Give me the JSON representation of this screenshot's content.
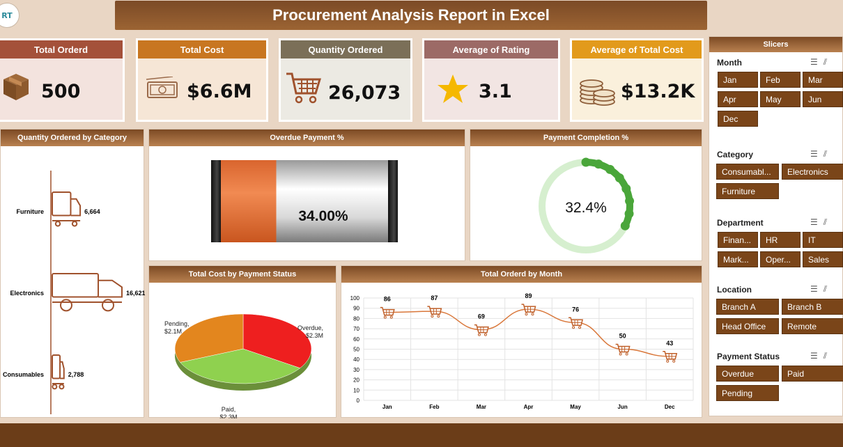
{
  "logo": {
    "text": "RT"
  },
  "title": "Procurement Analysis Report in Excel",
  "kpis": [
    {
      "label": "Total Orderd",
      "value": "500",
      "icon": "box-icon",
      "color": "#a4513a"
    },
    {
      "label": "Total Cost",
      "value": "$6.6M",
      "icon": "money-icon",
      "color": "#c87621"
    },
    {
      "label": "Quantity Ordered",
      "value": "26,073",
      "icon": "cart-icon",
      "color": "#7b6f58"
    },
    {
      "label": "Average of Rating",
      "value": "3.1",
      "icon": "star-icon",
      "color": "#9c6a66"
    },
    {
      "label": "Average of Total Cost",
      "value": "$13.2K",
      "icon": "coins-icon",
      "color": "#e29a1c"
    }
  ],
  "panels": {
    "category": {
      "title": "Quantity Ordered by Category"
    },
    "overdue": {
      "title": "Overdue Payment %",
      "value_label": "34.00%",
      "value": 34.0
    },
    "completion": {
      "title": "Payment Completion %",
      "value_label": "32.4%",
      "value": 32.4
    },
    "status": {
      "title": "Total Cost by Payment Status"
    },
    "month": {
      "title": "Total Orderd by Month"
    }
  },
  "chart_data": [
    {
      "type": "bar",
      "title": "Quantity Ordered by Category",
      "categories": [
        "Furniture",
        "Electronics",
        "Consumables"
      ],
      "values": [
        6664,
        16621,
        2788
      ],
      "value_labels": [
        "6,664",
        "16,621",
        "2,788"
      ]
    },
    {
      "type": "pie",
      "title": "Total Cost by Payment Status",
      "slices": [
        {
          "label": "Overdue,",
          "value_label": "$2.3M",
          "value": 2.3,
          "color": "#ee1f1f"
        },
        {
          "label": "Paid,",
          "value_label": "$2.3M",
          "value": 2.3,
          "color": "#8fd14f"
        },
        {
          "label": "Pending,",
          "value_label": "$2.1M",
          "value": 2.1,
          "color": "#e3861e"
        }
      ]
    },
    {
      "type": "line",
      "title": "Total Orderd by Month",
      "categories": [
        "Jan",
        "Feb",
        "Mar",
        "Apr",
        "May",
        "Jun",
        "Dec"
      ],
      "values": [
        86,
        87,
        69,
        89,
        76,
        50,
        43
      ],
      "ylim": [
        0,
        100
      ],
      "yticks": [
        "0",
        "10",
        "20",
        "30",
        "40",
        "50",
        "60",
        "70",
        "80",
        "90",
        "100"
      ],
      "grid": true,
      "color": "#d9773a"
    }
  ],
  "slicers": {
    "title": "Slicers",
    "groups": [
      {
        "name": "Month",
        "items": [
          "Jan",
          "Feb",
          "Mar",
          "Apr",
          "May",
          "Jun",
          "Dec"
        ]
      },
      {
        "name": "Category",
        "items": [
          "Consumabl...",
          "Electronics",
          "Furniture"
        ]
      },
      {
        "name": "Department",
        "items": [
          "Finan...",
          "HR",
          "IT",
          "Mark...",
          "Oper...",
          "Sales"
        ]
      },
      {
        "name": "Location",
        "items": [
          "Branch A",
          "Branch B",
          "Head Office",
          "Remote"
        ]
      },
      {
        "name": "Payment Status",
        "items": [
          "Overdue",
          "Paid",
          "Pending"
        ]
      }
    ],
    "icons": [
      "multi-select-icon",
      "clear-filter-icon"
    ]
  }
}
